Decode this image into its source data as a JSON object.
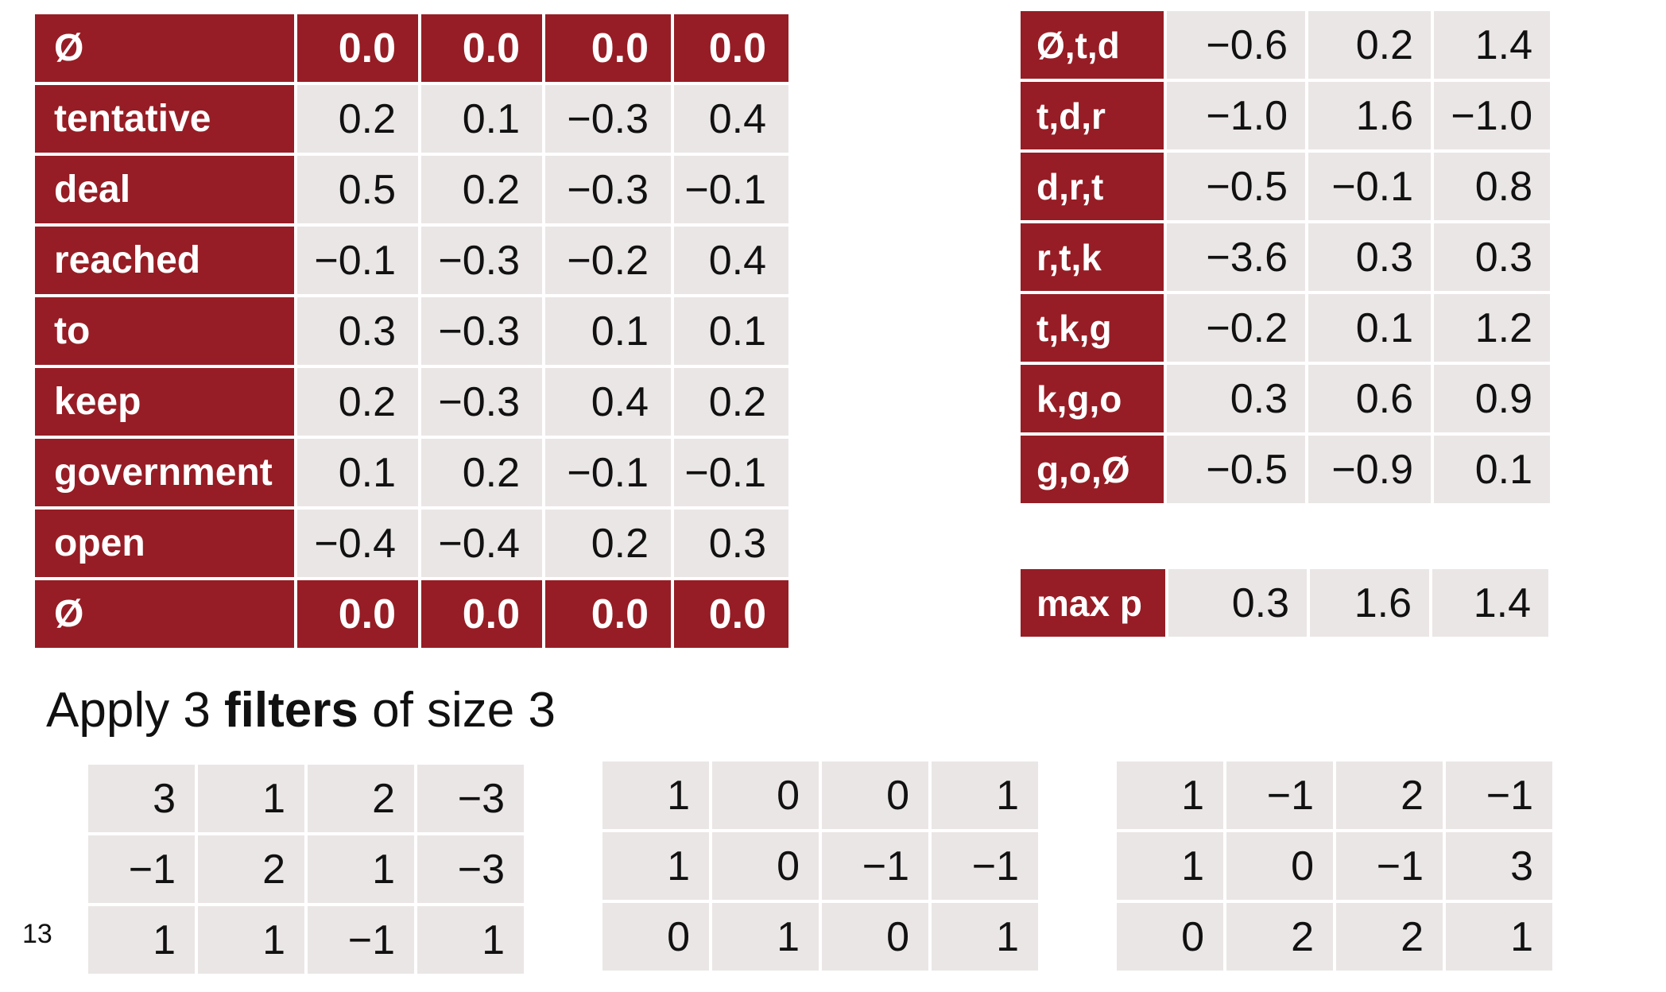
{
  "embedding_table": {
    "rows": [
      {
        "label": "Ø",
        "values": [
          "0.0",
          "0.0",
          "0.0",
          "0.0"
        ],
        "is_padding": true
      },
      {
        "label": "tentative",
        "values": [
          "0.2",
          "0.1",
          "−0.3",
          "0.4"
        ],
        "is_padding": false
      },
      {
        "label": "deal",
        "values": [
          "0.5",
          "0.2",
          "−0.3",
          "−0.1"
        ],
        "is_padding": false
      },
      {
        "label": "reached",
        "values": [
          "−0.1",
          "−0.3",
          "−0.2",
          "0.4"
        ],
        "is_padding": false
      },
      {
        "label": "to",
        "values": [
          "0.3",
          "−0.3",
          "0.1",
          "0.1"
        ],
        "is_padding": false
      },
      {
        "label": "keep",
        "values": [
          "0.2",
          "−0.3",
          "0.4",
          "0.2"
        ],
        "is_padding": false
      },
      {
        "label": "government",
        "values": [
          "0.1",
          "0.2",
          "−0.1",
          "−0.1"
        ],
        "is_padding": false
      },
      {
        "label": "open",
        "values": [
          "−0.4",
          "−0.4",
          "0.2",
          "0.3"
        ],
        "is_padding": false
      },
      {
        "label": "Ø",
        "values": [
          "0.0",
          "0.0",
          "0.0",
          "0.0"
        ],
        "is_padding": true
      }
    ]
  },
  "convolution_table": {
    "rows": [
      {
        "label": "Ø,t,d",
        "values": [
          "−0.6",
          "0.2",
          "1.4"
        ]
      },
      {
        "label": "t,d,r",
        "values": [
          "−1.0",
          "1.6",
          "−1.0"
        ]
      },
      {
        "label": "d,r,t",
        "values": [
          "−0.5",
          "−0.1",
          "0.8"
        ]
      },
      {
        "label": "r,t,k",
        "values": [
          "−3.6",
          "0.3",
          "0.3"
        ]
      },
      {
        "label": "t,k,g",
        "values": [
          "−0.2",
          "0.1",
          "1.2"
        ]
      },
      {
        "label": "k,g,o",
        "values": [
          "0.3",
          "0.6",
          "0.9"
        ]
      },
      {
        "label": "g,o,Ø",
        "values": [
          "−0.5",
          "−0.9",
          "0.1"
        ]
      }
    ]
  },
  "max_pool": {
    "label": "max p",
    "values": [
      "0.3",
      "1.6",
      "1.4"
    ]
  },
  "caption": {
    "prefix": "Apply 3 ",
    "emphasis": "filters",
    "suffix": " of size 3"
  },
  "filters": [
    {
      "rows": [
        [
          "3",
          "1",
          "2",
          "−3"
        ],
        [
          "−1",
          "2",
          "1",
          "−3"
        ],
        [
          "1",
          "1",
          "−1",
          "1"
        ]
      ]
    },
    {
      "rows": [
        [
          "1",
          "0",
          "0",
          "1"
        ],
        [
          "1",
          "0",
          "−1",
          "−1"
        ],
        [
          "0",
          "1",
          "0",
          "1"
        ]
      ]
    },
    {
      "rows": [
        [
          "1",
          "−1",
          "2",
          "−1"
        ],
        [
          "1",
          "0",
          "−1",
          "3"
        ],
        [
          "0",
          "2",
          "2",
          "1"
        ]
      ]
    }
  ],
  "slide_number": "13",
  "colors": {
    "label_background": "#961d25",
    "label_text": "#ffffff",
    "cell_background": "#ebe6e6",
    "cell_text": "#111111"
  }
}
